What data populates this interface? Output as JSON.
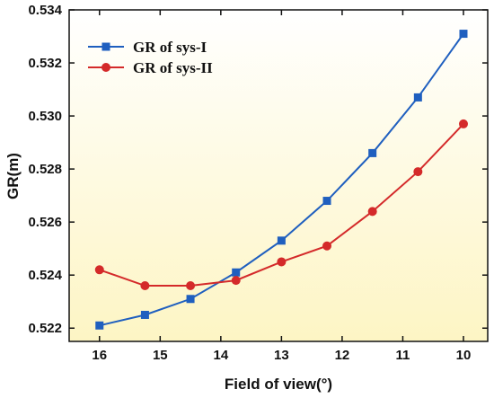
{
  "chart_data": {
    "type": "line",
    "xlabel": "Field of view(°)",
    "ylabel": "GR(m)",
    "x": [
      16,
      15.25,
      14.5,
      13.75,
      13,
      12.25,
      11.5,
      10.75,
      10
    ],
    "xlim": [
      16.5,
      9.6
    ],
    "x_reversed": true,
    "xticks": [
      16,
      15,
      14,
      13,
      12,
      11,
      10
    ],
    "ylim": [
      0.5215,
      0.534
    ],
    "yticks": [
      0.522,
      0.524,
      0.526,
      0.528,
      0.53,
      0.532,
      0.534
    ],
    "ytick_labels": [
      "0.522",
      "0.524",
      "0.526",
      "0.528",
      "0.530",
      "0.532",
      "0.534"
    ],
    "series": [
      {
        "name": "GR of sys-I",
        "color": "#1f5fbf",
        "marker": "square",
        "values": [
          0.5221,
          0.5225,
          0.5231,
          0.5241,
          0.5253,
          0.5268,
          0.5286,
          0.5307,
          0.5331
        ]
      },
      {
        "name": "GR of sys-II",
        "color": "#d42a2a",
        "marker": "circle",
        "values": [
          0.5242,
          0.5236,
          0.5236,
          0.5238,
          0.5245,
          0.5251,
          0.5264,
          0.5279,
          0.5297
        ]
      }
    ],
    "legend_position": "top-left",
    "grid": false,
    "background_gradient": [
      "#ffffff",
      "#fdf5c4"
    ]
  }
}
